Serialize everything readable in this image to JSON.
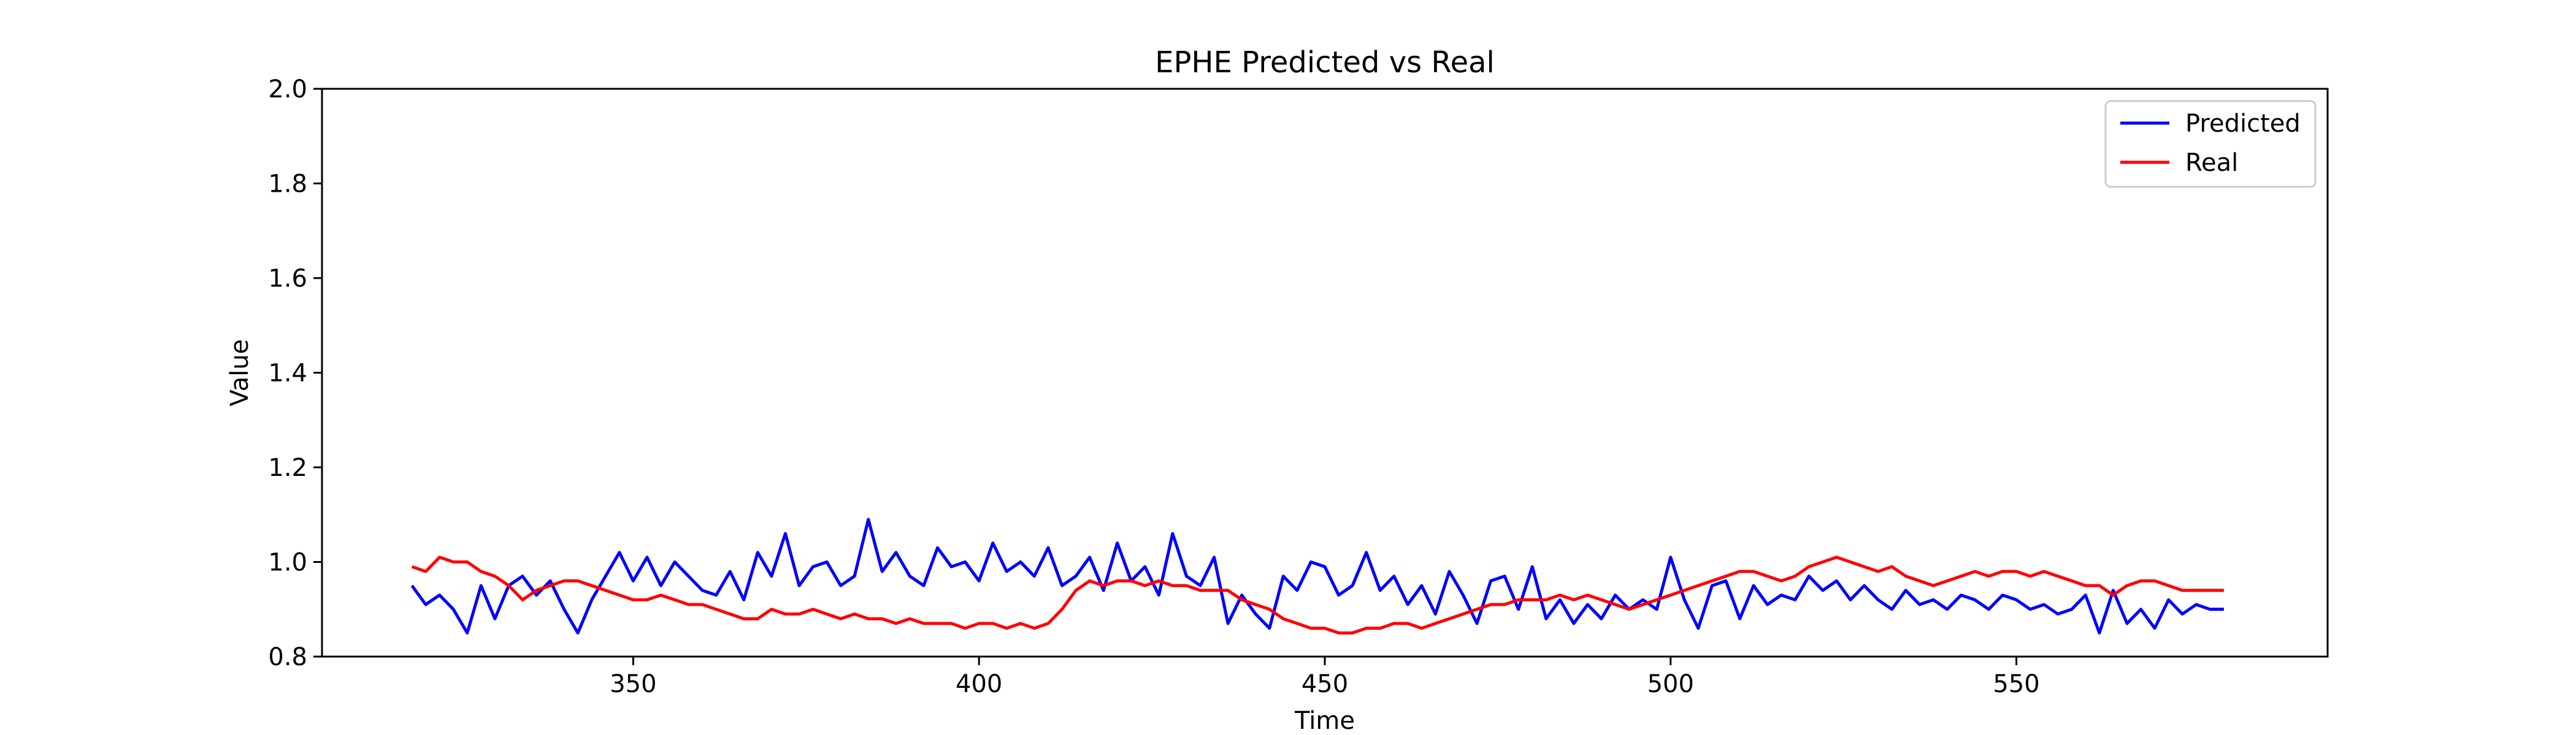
{
  "chart_data": {
    "type": "line",
    "title": "EPHE Predicted vs Real",
    "xlabel": "Time",
    "ylabel": "Value",
    "xlim": [
      305,
      595
    ],
    "ylim": [
      0.8,
      2.0
    ],
    "xticks": [
      350,
      400,
      450,
      500,
      550
    ],
    "yticks": [
      0.8,
      1.0,
      1.2,
      1.4,
      1.6,
      1.8,
      2.0
    ],
    "grid": false,
    "legend_position": "upper-right",
    "colors": {
      "Predicted": "#0000ff",
      "Real": "#ff0000"
    },
    "x_start": 318,
    "x_end": 580,
    "series": [
      {
        "name": "Predicted",
        "color": "#0000ff",
        "x": [
          318,
          320,
          322,
          324,
          326,
          328,
          330,
          332,
          334,
          336,
          338,
          340,
          342,
          344,
          346,
          348,
          350,
          352,
          354,
          356,
          358,
          360,
          362,
          364,
          366,
          368,
          370,
          372,
          374,
          376,
          378,
          380,
          382,
          384,
          386,
          388,
          390,
          392,
          394,
          396,
          398,
          400,
          402,
          404,
          406,
          408,
          410,
          412,
          414,
          416,
          418,
          420,
          422,
          424,
          426,
          428,
          430,
          432,
          434,
          436,
          438,
          440,
          442,
          444,
          446,
          448,
          450,
          452,
          454,
          456,
          458,
          460,
          462,
          464,
          466,
          468,
          470,
          472,
          474,
          476,
          478,
          480,
          482,
          484,
          486,
          488,
          490,
          492,
          494,
          496,
          498,
          500,
          502,
          504,
          506,
          508,
          510,
          512,
          514,
          516,
          518,
          520,
          522,
          524,
          526,
          528,
          530,
          532,
          534,
          536,
          538,
          540,
          542,
          544,
          546,
          548,
          550,
          552,
          554,
          556,
          558,
          560,
          562,
          564,
          566,
          568,
          570,
          572,
          574,
          576,
          578,
          580
        ],
        "values": [
          0.95,
          0.91,
          0.93,
          0.9,
          0.85,
          0.95,
          0.88,
          0.95,
          0.97,
          0.93,
          0.96,
          0.9,
          0.85,
          0.92,
          0.97,
          1.02,
          0.96,
          1.01,
          0.95,
          1.0,
          0.97,
          0.94,
          0.93,
          0.98,
          0.92,
          1.02,
          0.97,
          1.06,
          0.95,
          0.99,
          1.0,
          0.95,
          0.97,
          1.09,
          0.98,
          1.02,
          0.97,
          0.95,
          1.03,
          0.99,
          1.0,
          0.96,
          1.04,
          0.98,
          1.0,
          0.97,
          1.03,
          0.95,
          0.97,
          1.01,
          0.94,
          1.04,
          0.96,
          0.99,
          0.93,
          1.06,
          0.97,
          0.95,
          1.01,
          0.87,
          0.93,
          0.89,
          0.86,
          0.97,
          0.94,
          1.0,
          0.99,
          0.93,
          0.95,
          1.02,
          0.94,
          0.97,
          0.91,
          0.95,
          0.89,
          0.98,
          0.93,
          0.87,
          0.96,
          0.97,
          0.9,
          0.99,
          0.88,
          0.92,
          0.87,
          0.91,
          0.88,
          0.93,
          0.9,
          0.92,
          0.9,
          1.01,
          0.92,
          0.86,
          0.95,
          0.96,
          0.88,
          0.95,
          0.91,
          0.93,
          0.92,
          0.97,
          0.94,
          0.96,
          0.92,
          0.95,
          0.92,
          0.9,
          0.94,
          0.91,
          0.92,
          0.9,
          0.93,
          0.92,
          0.9,
          0.93,
          0.92,
          0.9,
          0.91,
          0.89,
          0.9,
          0.93,
          0.85,
          0.94,
          0.87,
          0.9,
          0.86,
          0.92,
          0.89,
          0.91,
          0.9,
          0.9
        ]
      },
      {
        "name": "Real",
        "color": "#ff0000",
        "x": [
          318,
          320,
          322,
          324,
          326,
          328,
          330,
          332,
          334,
          336,
          338,
          340,
          342,
          344,
          346,
          348,
          350,
          352,
          354,
          356,
          358,
          360,
          362,
          364,
          366,
          368,
          370,
          372,
          374,
          376,
          378,
          380,
          382,
          384,
          386,
          388,
          390,
          392,
          394,
          396,
          398,
          400,
          402,
          404,
          406,
          408,
          410,
          412,
          414,
          416,
          418,
          420,
          422,
          424,
          426,
          428,
          430,
          432,
          434,
          436,
          438,
          440,
          442,
          444,
          446,
          448,
          450,
          452,
          454,
          456,
          458,
          460,
          462,
          464,
          466,
          468,
          470,
          472,
          474,
          476,
          478,
          480,
          482,
          484,
          486,
          488,
          490,
          492,
          494,
          496,
          498,
          500,
          502,
          504,
          506,
          508,
          510,
          512,
          514,
          516,
          518,
          520,
          522,
          524,
          526,
          528,
          530,
          532,
          534,
          536,
          538,
          540,
          542,
          544,
          546,
          548,
          550,
          552,
          554,
          556,
          558,
          560,
          562,
          564,
          566,
          568,
          570,
          572,
          574,
          576,
          578,
          580
        ],
        "values": [
          0.99,
          0.98,
          1.01,
          1.0,
          1.0,
          0.98,
          0.97,
          0.95,
          0.92,
          0.94,
          0.95,
          0.96,
          0.96,
          0.95,
          0.94,
          0.93,
          0.92,
          0.92,
          0.93,
          0.92,
          0.91,
          0.91,
          0.9,
          0.89,
          0.88,
          0.88,
          0.9,
          0.89,
          0.89,
          0.9,
          0.89,
          0.88,
          0.89,
          0.88,
          0.88,
          0.87,
          0.88,
          0.87,
          0.87,
          0.87,
          0.86,
          0.87,
          0.87,
          0.86,
          0.87,
          0.86,
          0.87,
          0.9,
          0.94,
          0.96,
          0.95,
          0.96,
          0.96,
          0.95,
          0.96,
          0.95,
          0.95,
          0.94,
          0.94,
          0.94,
          0.92,
          0.91,
          0.9,
          0.88,
          0.87,
          0.86,
          0.86,
          0.85,
          0.85,
          0.86,
          0.86,
          0.87,
          0.87,
          0.86,
          0.87,
          0.88,
          0.89,
          0.9,
          0.91,
          0.91,
          0.92,
          0.92,
          0.92,
          0.93,
          0.92,
          0.93,
          0.92,
          0.91,
          0.9,
          0.91,
          0.92,
          0.93,
          0.94,
          0.95,
          0.96,
          0.97,
          0.98,
          0.98,
          0.97,
          0.96,
          0.97,
          0.99,
          1.0,
          1.01,
          1.0,
          0.99,
          0.98,
          0.99,
          0.97,
          0.96,
          0.95,
          0.96,
          0.97,
          0.98,
          0.97,
          0.98,
          0.98,
          0.97,
          0.98,
          0.97,
          0.96,
          0.95,
          0.95,
          0.93,
          0.95,
          0.96,
          0.96,
          0.95,
          0.94,
          0.94,
          0.94,
          0.94
        ]
      }
    ]
  }
}
